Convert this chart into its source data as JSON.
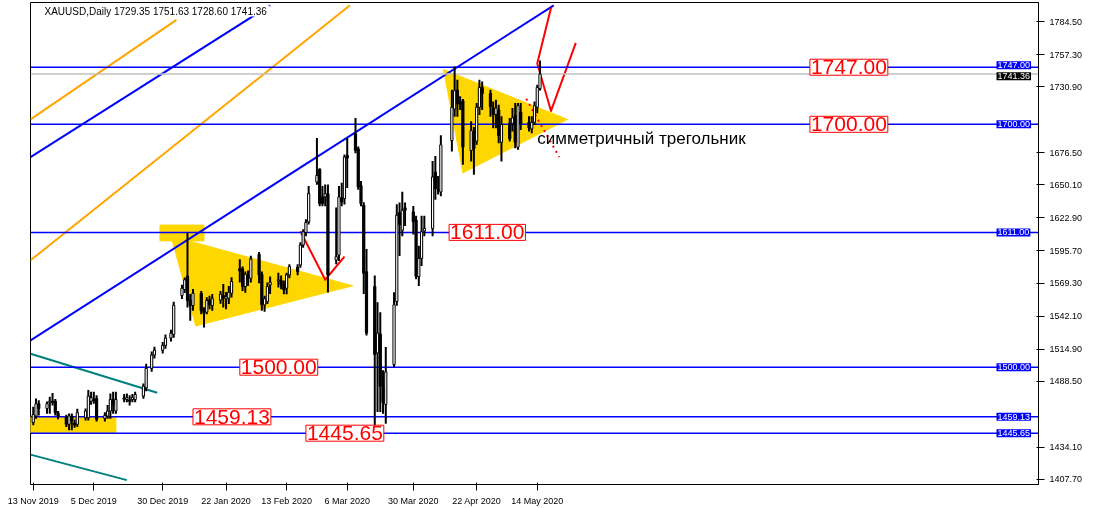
{
  "chart_data": {
    "type": "candlestick",
    "title": "XAUUSD,Daily  1729.35 1751.63 1728.60 1741.36",
    "x": [
      "2019-11-13",
      "2019-11-14",
      "2019-11-15",
      "2019-11-18",
      "2019-11-19",
      "2019-11-20",
      "2019-11-21",
      "2019-11-22",
      "2019-11-25",
      "2019-11-26",
      "2019-11-27",
      "2019-11-28",
      "2019-11-29",
      "2019-12-02",
      "2019-12-03",
      "2019-12-04",
      "2019-12-05",
      "2019-12-06",
      "2019-12-09",
      "2019-12-10",
      "2019-12-11",
      "2019-12-12",
      "2019-12-13",
      "2019-12-16",
      "2019-12-17",
      "2019-12-18",
      "2019-12-19",
      "2019-12-20",
      "2019-12-23",
      "2019-12-24",
      "2019-12-26",
      "2019-12-27",
      "2019-12-30",
      "2019-12-31",
      "2020-01-02",
      "2020-01-03",
      "2020-01-06",
      "2020-01-07",
      "2020-01-08",
      "2020-01-09",
      "2020-01-10",
      "2020-01-13",
      "2020-01-14",
      "2020-01-15",
      "2020-01-16",
      "2020-01-17",
      "2020-01-20",
      "2020-01-21",
      "2020-01-22",
      "2020-01-23",
      "2020-01-24",
      "2020-01-27",
      "2020-01-28",
      "2020-01-29",
      "2020-01-30",
      "2020-01-31",
      "2020-02-03",
      "2020-02-04",
      "2020-02-05",
      "2020-02-06",
      "2020-02-07",
      "2020-02-10",
      "2020-02-11",
      "2020-02-12",
      "2020-02-13",
      "2020-02-14",
      "2020-02-17",
      "2020-02-18",
      "2020-02-19",
      "2020-02-20",
      "2020-02-21",
      "2020-02-24",
      "2020-02-25",
      "2020-02-26",
      "2020-02-27",
      "2020-02-28",
      "2020-03-02",
      "2020-03-03",
      "2020-03-04",
      "2020-03-05",
      "2020-03-06",
      "2020-03-09",
      "2020-03-10",
      "2020-03-11",
      "2020-03-12",
      "2020-03-13",
      "2020-03-16",
      "2020-03-17",
      "2020-03-18",
      "2020-03-19",
      "2020-03-20",
      "2020-03-23",
      "2020-03-24",
      "2020-03-25",
      "2020-03-26",
      "2020-03-27",
      "2020-03-30",
      "2020-03-31",
      "2020-04-01",
      "2020-04-02",
      "2020-04-03",
      "2020-04-06",
      "2020-04-07",
      "2020-04-08",
      "2020-04-09",
      "2020-04-13",
      "2020-04-14",
      "2020-04-15",
      "2020-04-16",
      "2020-04-17",
      "2020-04-20",
      "2020-04-21",
      "2020-04-22",
      "2020-04-23",
      "2020-04-24",
      "2020-04-27",
      "2020-04-28",
      "2020-04-29",
      "2020-04-30",
      "2020-05-01",
      "2020-05-04",
      "2020-05-05",
      "2020-05-06",
      "2020-05-07",
      "2020-05-08",
      "2020-05-11",
      "2020-05-12",
      "2020-05-13",
      "2020-05-14",
      "2020-05-15"
    ],
    "ohlc": [
      [
        1454.5,
        1466.5,
        1453,
        1461
      ],
      [
        1459.8,
        1473.4,
        1458.4,
        1469.9
      ],
      [
        1469.9,
        1472,
        1461,
        1466
      ],
      [
        1466,
        1471,
        1462.5,
        1469.9
      ],
      [
        1471,
        1474.8,
        1462.5,
        1472
      ],
      [
        1472,
        1478,
        1469.3,
        1471
      ],
      [
        1472,
        1473,
        1461,
        1462.5
      ],
      [
        1462.5,
        1463,
        1458,
        1459.8
      ],
      [
        1459,
        1460,
        1451.6,
        1453
      ],
      [
        1453,
        1461,
        1448.8,
        1459.8
      ],
      [
        1459.8,
        1461,
        1448.8,
        1455.7
      ],
      [
        1454,
        1456,
        1451,
        1452.4
      ],
      [
        1453,
        1465,
        1451.6,
        1462.5
      ],
      [
        1458.4,
        1465.2,
        1457,
        1463.9
      ],
      [
        1458.4,
        1480.3,
        1457,
        1476.2
      ],
      [
        1471.9,
        1478.9,
        1469.9,
        1475
      ],
      [
        1473,
        1478.9,
        1470.7,
        1472.4
      ],
      [
        1474.3,
        1476,
        1456,
        1457
      ],
      [
        1457.8,
        1462,
        1456,
        1460.3
      ],
      [
        1459.8,
        1468,
        1458.4,
        1463.9
      ],
      [
        1463.9,
        1477.5,
        1458.4,
        1473.4
      ],
      [
        1473.4,
        1478.9,
        1462.5,
        1469.3
      ],
      [
        1463.9,
        1478.9,
        1462.5,
        1473.4
      ],
      [
        1474.8,
        1477,
        1472,
        1473.4
      ],
      [
        1473.4,
        1477.5,
        1472,
        1475
      ],
      [
        1473,
        1476,
        1469.3,
        1471.9
      ],
      [
        1473.4,
        1477,
        1471.9,
        1475
      ],
      [
        1473.4,
        1478.9,
        1472,
        1477.5
      ],
      [
        1476.2,
        1485.7,
        1474.8,
        1484.4
      ],
      [
        1483,
        1502,
        1481,
        1499
      ],
      [
        1499,
        1512,
        1497,
        1510
      ],
      [
        1510,
        1516,
        1508,
        1514
      ],
      [
        1514,
        1520,
        1512,
        1518
      ],
      [
        1518,
        1526,
        1516,
        1524
      ],
      [
        1524,
        1530,
        1522,
        1528
      ],
      [
        1527,
        1553,
        1525,
        1551
      ],
      [
        1559,
        1567,
        1557,
        1565
      ],
      [
        1564,
        1573,
        1562,
        1572
      ],
      [
        1575,
        1610,
        1550,
        1555
      ],
      [
        1555.4,
        1559.5,
        1539,
        1550.8
      ],
      [
        1550.8,
        1563.6,
        1547.3,
        1560.9
      ],
      [
        1560.9,
        1562,
        1544.5,
        1546.4
      ],
      [
        1546.4,
        1548.6,
        1533.6,
        1544.5
      ],
      [
        1545.3,
        1556.8,
        1544.5,
        1554.9
      ],
      [
        1555.4,
        1558,
        1548.6,
        1551.3
      ],
      [
        1550.8,
        1559.5,
        1547.3,
        1556.3
      ],
      [
        1555.4,
        1562,
        1553,
        1560
      ],
      [
        1559,
        1567.7,
        1550,
        1557
      ],
      [
        1556.3,
        1561,
        1548.6,
        1558
      ],
      [
        1556.8,
        1566,
        1552.8,
        1561.7
      ],
      [
        1560.9,
        1573.2,
        1558.2,
        1570.5
      ],
      [
        1581,
        1588,
        1570.5,
        1579.2
      ],
      [
        1581,
        1582,
        1563.6,
        1566.4
      ],
      [
        1566.4,
        1578,
        1562.2,
        1576.5
      ],
      [
        1575.9,
        1578.7,
        1567.7,
        1573.2
      ],
      [
        1573.2,
        1591,
        1570.5,
        1589
      ],
      [
        1592.9,
        1594,
        1570,
        1575.9
      ],
      [
        1576.5,
        1578,
        1547.3,
        1551.3
      ],
      [
        1551.3,
        1558,
        1546.4,
        1556.3
      ],
      [
        1554,
        1569,
        1552.8,
        1566.4
      ],
      [
        1567.7,
        1573.8,
        1561,
        1570
      ],
      [
        1571,
        1577,
        1566.4,
        1572
      ],
      [
        1571.3,
        1574.6,
        1565,
        1567.7
      ],
      [
        1567.7,
        1570.5,
        1560.9,
        1563.6
      ],
      [
        1565,
        1577,
        1560.9,
        1576
      ],
      [
        1576,
        1584,
        1574,
        1582.8
      ],
      [
        1582.3,
        1584,
        1576.6,
        1578.7
      ],
      [
        1584.2,
        1602,
        1582.8,
        1600.6
      ],
      [
        1600.6,
        1612.8,
        1599.2,
        1611.5
      ],
      [
        1610.9,
        1621,
        1608.7,
        1619.1
      ],
      [
        1619.7,
        1648.4,
        1618.3,
        1642.9
      ],
      [
        1652.5,
        1688,
        1651.1,
        1657.9
      ],
      [
        1662.9,
        1663,
        1633.3,
        1634.7
      ],
      [
        1640.2,
        1648.4,
        1633.3,
        1634.7
      ],
      [
        1640.2,
        1649.7,
        1633.3,
        1642.9
      ],
      [
        1642.9,
        1649.7,
        1562.3,
        1576
      ],
      [
        1588.2,
        1630.6,
        1585.5,
        1591
      ],
      [
        1592.3,
        1648.4,
        1588.2,
        1640.2
      ],
      [
        1639.4,
        1651.1,
        1633.3,
        1636.1
      ],
      [
        1638.8,
        1674.3,
        1634.7,
        1673
      ],
      [
        1674.3,
        1688,
        1648.4,
        1672.2
      ],
      [
        1692.1,
        1704.4,
        1677,
        1678.4
      ],
      [
        1679.8,
        1681,
        1647,
        1648.4
      ],
      [
        1649.7,
        1652.5,
        1633.3,
        1634.7
      ],
      [
        1633.4,
        1635,
        1561,
        1577.3
      ],
      [
        1578.7,
        1596.4,
        1527,
        1528.1
      ],
      [
        1566.4,
        1574.6,
        1451.6,
        1510.4
      ],
      [
        1511.7,
        1552.7,
        1464,
        1528.1
      ],
      [
        1527.3,
        1544.5,
        1464,
        1484.4
      ],
      [
        1484.4,
        1496.7,
        1462.5,
        1470.7
      ],
      [
        1469.3,
        1515.8,
        1454.3,
        1496.1
      ],
      [
        1502.2,
        1560.9,
        1500.8,
        1551.4
      ],
      [
        1554.1,
        1633.3,
        1551.4,
        1625.2
      ],
      [
        1627.4,
        1634.7,
        1592.3,
        1617.3
      ],
      [
        1612.8,
        1643.7,
        1608.7,
        1629.2
      ],
      [
        1631.2,
        1634.7,
        1617,
        1629.2
      ],
      [
        1627.9,
        1632,
        1610,
        1619.7
      ],
      [
        1621.1,
        1623.8,
        1573.2,
        1574.6
      ],
      [
        1574.6,
        1599.2,
        1567.7,
        1589.6
      ],
      [
        1589.6,
        1623.8,
        1584.2,
        1611.5
      ],
      [
        1612.2,
        1623.8,
        1608.7,
        1614.3
      ],
      [
        1614.3,
        1668.9,
        1608.7,
        1656.6
      ],
      [
        1660.7,
        1673,
        1638.8,
        1647
      ],
      [
        1646,
        1656.6,
        1643,
        1645.6
      ],
      [
        1644.3,
        1690.2,
        1641.5,
        1683.1
      ],
      [
        1686.6,
        1727.6,
        1678.4,
        1714
      ],
      [
        1712.6,
        1746.8,
        1707.1,
        1727.6
      ],
      [
        1728.2,
        1735.8,
        1707.1,
        1716.7
      ],
      [
        1718.1,
        1722.2,
        1712.6,
        1716.7
      ],
      [
        1719.4,
        1720,
        1667.5,
        1681.2
      ],
      [
        1678.4,
        1701.7,
        1670.2,
        1694.8
      ],
      [
        1694,
        1697,
        1659.3,
        1680
      ],
      [
        1686.1,
        1716.7,
        1683.9,
        1714
      ],
      [
        1714,
        1735.8,
        1708.5,
        1730.4
      ],
      [
        1730.4,
        1734.5,
        1712.6,
        1725.4
      ],
      [
        1725.4,
        1727.6,
        1707.1,
        1714.5
      ],
      [
        1713.4,
        1718,
        1697.6,
        1708
      ],
      [
        1708,
        1719.4,
        1697.6,
        1713.4
      ],
      [
        1711.8,
        1715.3,
        1685.3,
        1690.7
      ],
      [
        1685.3,
        1705.8,
        1670.2,
        1699.8
      ],
      [
        1700.9,
        1704.4,
        1686.6,
        1688
      ],
      [
        1700.9,
        1712.6,
        1694.8,
        1705.3
      ],
      [
        1707.1,
        1716.7,
        1681.2,
        1685.3
      ],
      [
        1681.2,
        1716.7,
        1679.8,
        1715.3
      ],
      [
        1709.9,
        1716.7,
        1696.2,
        1700.3
      ],
      [
        1701.7,
        1705.8,
        1694.8,
        1697
      ],
      [
        1696.2,
        1705.8,
        1693.5,
        1701.7
      ],
      [
        1701.7,
        1718,
        1700.3,
        1715.3
      ],
      [
        1714,
        1731.8,
        1709.9,
        1730.4
      ],
      [
        1729.35,
        1751.63,
        1728.6,
        1741.36
      ]
    ],
    "series": [
      {
        "type": "area",
        "color": "#ffd700",
        "x": [
          "2019-11-12",
          "2019-12-13",
          "2019-12-13",
          "2019-11-12"
        ],
        "values": [
          1459,
          1459,
          1446,
          1446
        ]
      },
      {
        "type": "area",
        "color": "#ffd700",
        "x": [
          "2019-12-29",
          "2020-01-14",
          "2020-01-14",
          "2019-12-29"
        ],
        "values": [
          1617,
          1617,
          1604,
          1604
        ]
      },
      {
        "type": "area",
        "color": "#ffd700",
        "x": [
          "2020-01-02",
          "2020-01-11",
          "2020-03-08"
        ],
        "values": [
          1608,
          1534,
          1567
        ]
      },
      {
        "type": "area",
        "color": "#ffd700",
        "x": [
          "2020-04-10",
          "2020-04-17",
          "2020-05-25"
        ],
        "values": [
          1745,
          1660,
          1704
        ]
      },
      {
        "type": "line",
        "color": "#0000ff",
        "x": [
          "2019-11-12",
          "2020-05-20"
        ],
        "values": [
          1522,
          1798
        ]
      },
      {
        "type": "line",
        "color": "#0000ff",
        "x": [
          "2019-11-12",
          "2020-02-07"
        ],
        "values": [
          1673,
          1798
        ]
      },
      {
        "type": "line",
        "color": "#ffa500",
        "x": [
          "2019-11-12",
          "2020-03-07"
        ],
        "values": [
          1588,
          1798
        ]
      },
      {
        "type": "line",
        "color": "#ffa500",
        "x": [
          "2019-11-12",
          "2020-01-04"
        ],
        "values": [
          1704,
          1786
        ]
      },
      {
        "type": "line",
        "color": "#008080",
        "x": [
          "2019-11-12",
          "2019-12-28"
        ],
        "values": [
          1511,
          1479
        ]
      },
      {
        "type": "line",
        "color": "#008080",
        "x": [
          "2019-11-12",
          "2019-12-17"
        ],
        "values": [
          1428,
          1407
        ]
      },
      {
        "type": "line",
        "color": "#ff0000",
        "x": [
          "2020-02-18",
          "2020-02-27",
          "2020-03-05"
        ],
        "values": [
          1612,
          1572,
          1591
        ]
      },
      {
        "type": "line",
        "color": "#ff0000",
        "x": [
          "2020-05-19",
          "2020-05-14",
          "2020-05-19",
          "2020-05-28"
        ],
        "values": [
          1796,
          1750,
          1711,
          1767
        ]
      },
      {
        "type": "line",
        "color": "#ff0000",
        "line_style": "dotted",
        "x": [
          "2020-05-10",
          "2020-05-22"
        ],
        "values": [
          1721,
          1673
        ]
      }
    ],
    "xlim": [
      "2019-11-12",
      "2020-11-12"
    ],
    "xticks": [
      {
        "value": "2019-11-13",
        "label": "13 Nov 2019"
      },
      {
        "value": "2019-12-05",
        "label": "5 Dec 2019"
      },
      {
        "value": "2019-12-30",
        "label": "30 Dec 2019"
      },
      {
        "value": "2020-01-22",
        "label": "22 Jan 2020"
      },
      {
        "value": "2020-02-13",
        "label": "13 Feb 2020"
      },
      {
        "value": "2020-03-06",
        "label": "6 Mar 2020"
      },
      {
        "value": "2020-03-30",
        "label": "30 Mar 2020"
      },
      {
        "value": "2020-04-22",
        "label": "22 Apr 2020"
      },
      {
        "value": "2020-05-14",
        "label": "14 May 2020"
      }
    ],
    "ylim": [
      1403.4,
      1800.3
    ],
    "yticks": [
      {
        "value": 1407.7,
        "label": "1407.70"
      },
      {
        "value": 1434.1,
        "label": "1434.10"
      },
      {
        "value": 1488.5,
        "label": "1488.50"
      },
      {
        "value": 1514.9,
        "label": "1514.90"
      },
      {
        "value": 1542.1,
        "label": "1542.10"
      },
      {
        "value": 1569.3,
        "label": "1569.30"
      },
      {
        "value": 1595.7,
        "label": "1595.70"
      },
      {
        "value": 1622.9,
        "label": "1622.90"
      },
      {
        "value": 1650.1,
        "label": "1650.10"
      },
      {
        "value": 1676.5,
        "label": "1676.50"
      },
      {
        "value": 1730.9,
        "label": "1730.90"
      },
      {
        "value": 1757.3,
        "label": "1757.30"
      },
      {
        "value": 1784.5,
        "label": "1784.50"
      }
    ],
    "ref_lines": [
      {
        "axis": "y",
        "value": 1747,
        "label": "1747.00",
        "color": "#0000ff"
      },
      {
        "axis": "y",
        "value": 1741.36,
        "label": "1741.36",
        "color": "#c0c0c0"
      },
      {
        "axis": "y",
        "value": 1700,
        "label": "1700.00",
        "color": "#0000ff"
      },
      {
        "axis": "y",
        "value": 1611,
        "label": "1611.00",
        "color": "#0000ff"
      },
      {
        "axis": "y",
        "value": 1500,
        "label": "1500.00",
        "color": "#0000ff"
      },
      {
        "axis": "y",
        "value": 1459.13,
        "label": "1459.13",
        "color": "#0000ff"
      },
      {
        "axis": "y",
        "value": 1445.65,
        "label": "1445.65",
        "color": "#0000ff"
      }
    ],
    "annotations": [
      {
        "text": "1747.00",
        "x": "2020-08-21",
        "y": 1747
      },
      {
        "text": "1700.00",
        "x": "2020-08-21",
        "y": 1700
      },
      {
        "text": "1611.00",
        "x": "2020-04-12",
        "y": 1611
      },
      {
        "text": "1500.00",
        "x": "2020-01-27",
        "y": 1500
      },
      {
        "text": "1459.13",
        "x": "2020-01-10",
        "y": 1459.13
      },
      {
        "text": "1445.65",
        "x": "2020-02-20",
        "y": 1445.65
      },
      {
        "text": "симметричный трегольник",
        "x": "2020-05-14",
        "y": 1688
      }
    ]
  }
}
